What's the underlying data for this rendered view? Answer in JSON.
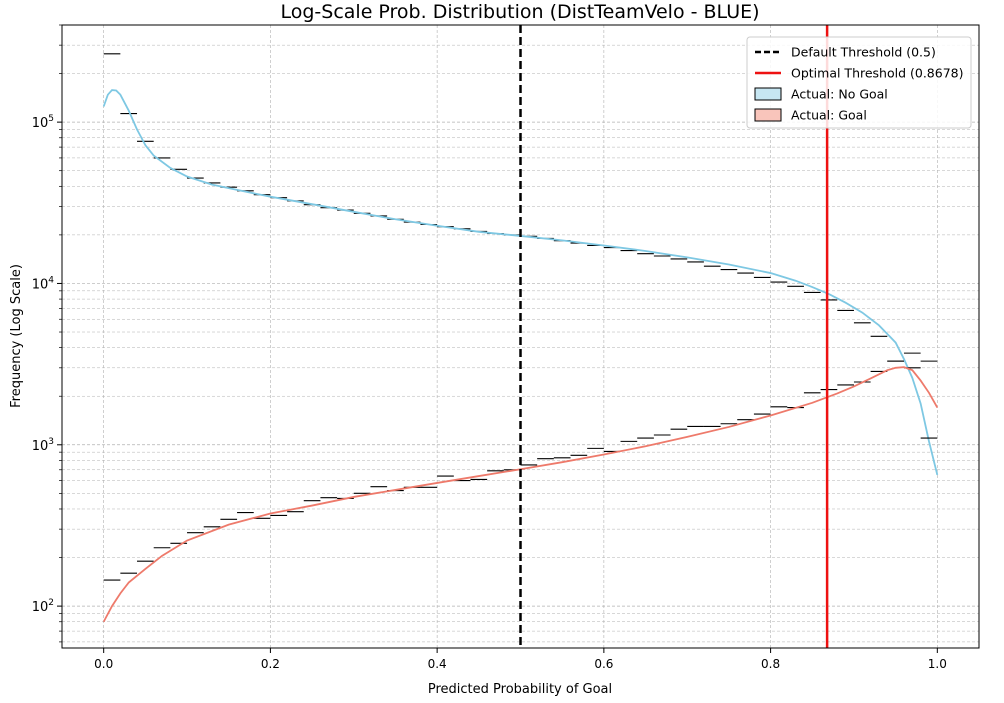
{
  "chart_data": {
    "type": "histogram-kde",
    "title": "Log-Scale Prob. Distribution (DistTeamVelo - BLUE)",
    "xlabel": "Predicted Probability of Goal",
    "ylabel": "Frequency (Log Scale)",
    "xlim": [
      -0.05,
      1.05
    ],
    "ylim": [
      55,
      400000
    ],
    "yscale": "log",
    "grid": true,
    "legend_position": "top-right",
    "x_ticks": [
      0.0,
      0.2,
      0.4,
      0.6,
      0.8,
      1.0
    ],
    "x_tick_labels": [
      "0.0",
      "0.2",
      "0.4",
      "0.6",
      "0.8",
      "1.0"
    ],
    "y_ticks": [
      100,
      1000,
      10000,
      100000
    ],
    "y_tick_labels": [
      {
        "base": "10",
        "exp": "2"
      },
      {
        "base": "10",
        "exp": "3"
      },
      {
        "base": "10",
        "exp": "4"
      },
      {
        "base": "10",
        "exp": "5"
      }
    ],
    "thresholds": [
      {
        "name": "Default Threshold (0.5)",
        "x": 0.5,
        "color": "#000000",
        "style": "dashed"
      },
      {
        "name": "Optimal Threshold (0.8678)",
        "x": 0.8678,
        "color": "#ee1111",
        "style": "solid"
      }
    ],
    "legend": [
      {
        "label": "Default Threshold (0.5)",
        "kind": "line",
        "color": "#000000",
        "style": "dashed"
      },
      {
        "label": "Optimal Threshold (0.8678)",
        "kind": "line",
        "color": "#ee1111",
        "style": "solid"
      },
      {
        "label": "Actual: No Goal",
        "kind": "patch",
        "color": "#c6e6f2"
      },
      {
        "label": "Actual: Goal",
        "kind": "patch",
        "color": "#f9c5bb"
      }
    ],
    "bin_width": 0.02,
    "series": [
      {
        "name": "Actual: No Goal",
        "color": "#7ec8e3",
        "bin_starts": [
          0.0,
          0.02,
          0.04,
          0.06,
          0.08,
          0.1,
          0.12,
          0.14,
          0.16,
          0.18,
          0.2,
          0.22,
          0.24,
          0.26,
          0.28,
          0.3,
          0.32,
          0.34,
          0.36,
          0.38,
          0.4,
          0.42,
          0.44,
          0.46,
          0.48,
          0.5,
          0.52,
          0.54,
          0.56,
          0.58,
          0.6,
          0.62,
          0.64,
          0.66,
          0.68,
          0.7,
          0.72,
          0.74,
          0.76,
          0.78,
          0.8,
          0.82,
          0.84,
          0.86,
          0.88,
          0.9,
          0.92,
          0.94,
          0.96,
          0.98
        ],
        "counts": [
          265000,
          113000,
          76000,
          60000,
          51000,
          45000,
          42000,
          39500,
          37500,
          35500,
          34000,
          32500,
          30800,
          29500,
          28500,
          27200,
          26200,
          25000,
          24000,
          23200,
          22500,
          21800,
          21000,
          20400,
          20000,
          19600,
          19000,
          18400,
          17800,
          17200,
          16700,
          16000,
          15300,
          14800,
          14200,
          13600,
          12800,
          12200,
          11600,
          10900,
          10200,
          9600,
          8800,
          7900,
          6800,
          5700,
          4700,
          3300,
          3700,
          3300
        ],
        "kde_x": [
          0.0,
          0.005,
          0.01,
          0.015,
          0.02,
          0.03,
          0.04,
          0.05,
          0.06,
          0.08,
          0.1,
          0.13,
          0.16,
          0.2,
          0.25,
          0.3,
          0.35,
          0.4,
          0.45,
          0.5,
          0.55,
          0.6,
          0.65,
          0.7,
          0.75,
          0.8,
          0.83,
          0.85,
          0.87,
          0.89,
          0.91,
          0.93,
          0.95,
          0.96,
          0.97,
          0.98,
          0.99,
          1.0
        ],
        "kde_y": [
          125000,
          148000,
          158000,
          157000,
          148000,
          118000,
          90000,
          72000,
          62000,
          52000,
          46000,
          41000,
          38000,
          34500,
          31000,
          27800,
          25000,
          22800,
          20900,
          19700,
          18500,
          17200,
          15900,
          14500,
          13100,
          11600,
          10400,
          9500,
          8600,
          7600,
          6600,
          5500,
          4300,
          3400,
          2600,
          1800,
          1050,
          650
        ]
      },
      {
        "name": "Actual: Goal",
        "color": "#ee7a6b",
        "bin_starts": [
          0.0,
          0.02,
          0.04,
          0.06,
          0.08,
          0.1,
          0.12,
          0.14,
          0.16,
          0.18,
          0.2,
          0.22,
          0.24,
          0.26,
          0.28,
          0.3,
          0.32,
          0.34,
          0.36,
          0.38,
          0.4,
          0.42,
          0.44,
          0.46,
          0.48,
          0.5,
          0.52,
          0.54,
          0.56,
          0.58,
          0.6,
          0.62,
          0.64,
          0.66,
          0.68,
          0.7,
          0.72,
          0.74,
          0.76,
          0.78,
          0.8,
          0.82,
          0.84,
          0.86,
          0.88,
          0.9,
          0.92,
          0.94,
          0.96,
          0.98
        ],
        "counts": [
          145,
          160,
          190,
          230,
          245,
          285,
          310,
          345,
          380,
          350,
          365,
          385,
          450,
          470,
          465,
          500,
          550,
          520,
          545,
          545,
          640,
          600,
          610,
          690,
          700,
          750,
          820,
          830,
          860,
          950,
          910,
          1050,
          1100,
          1150,
          1250,
          1300,
          1300,
          1350,
          1430,
          1550,
          1720,
          1700,
          2100,
          2200,
          2350,
          2450,
          2850,
          3300,
          3000,
          1100
        ],
        "kde_x": [
          0.0,
          0.01,
          0.02,
          0.03,
          0.05,
          0.07,
          0.1,
          0.15,
          0.2,
          0.25,
          0.3,
          0.35,
          0.4,
          0.45,
          0.5,
          0.55,
          0.6,
          0.65,
          0.7,
          0.75,
          0.8,
          0.85,
          0.88,
          0.9,
          0.92,
          0.94,
          0.95,
          0.96,
          0.97,
          0.98,
          0.99,
          1.0
        ],
        "kde_y": [
          80,
          100,
          120,
          140,
          170,
          205,
          255,
          320,
          375,
          420,
          475,
          525,
          580,
          640,
          705,
          780,
          870,
          980,
          1120,
          1290,
          1520,
          1820,
          2080,
          2300,
          2580,
          2900,
          3000,
          3030,
          2900,
          2500,
          2100,
          1700
        ]
      }
    ]
  }
}
